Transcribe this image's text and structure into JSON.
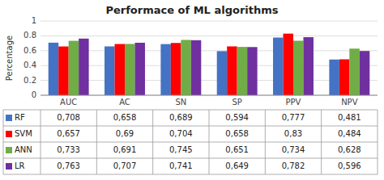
{
  "chart_data": {
    "type": "bar",
    "title": "Performace of ML algorithms",
    "y_label": "Percentage",
    "categories": [
      "AUC",
      "AC",
      "SN",
      "SP",
      "PPV",
      "NPV"
    ],
    "series": [
      {
        "name": "RF",
        "color": "#4472C4",
        "values": [
          0.708,
          0.658,
          0.689,
          0.594,
          0.777,
          0.481
        ],
        "value_labels": [
          "0,708",
          "0,658",
          "0,689",
          "0,594",
          "0,777",
          "0,481"
        ]
      },
      {
        "name": "SVM",
        "color": "#FF0000",
        "values": [
          0.657,
          0.69,
          0.704,
          0.658,
          0.83,
          0.484
        ],
        "value_labels": [
          "0,657",
          "0,69",
          "0,704",
          "0,658",
          "0,83",
          "0,484"
        ]
      },
      {
        "name": "ANN",
        "color": "#70AD47",
        "values": [
          0.733,
          0.691,
          0.745,
          0.651,
          0.734,
          0.628
        ],
        "value_labels": [
          "0,733",
          "0,691",
          "0,745",
          "0,651",
          "0,734",
          "0,628"
        ]
      },
      {
        "name": "LR",
        "color": "#7030A0",
        "values": [
          0.763,
          0.707,
          0.741,
          0.649,
          0.782,
          0.596
        ],
        "value_labels": [
          "0,763",
          "0,707",
          "0,741",
          "0,649",
          "0,782",
          "0,596"
        ]
      }
    ],
    "ylim": [
      0,
      1.0
    ],
    "yticks": [
      0,
      0.2,
      0.4,
      0.6,
      0.8,
      1
    ],
    "grid": true
  }
}
